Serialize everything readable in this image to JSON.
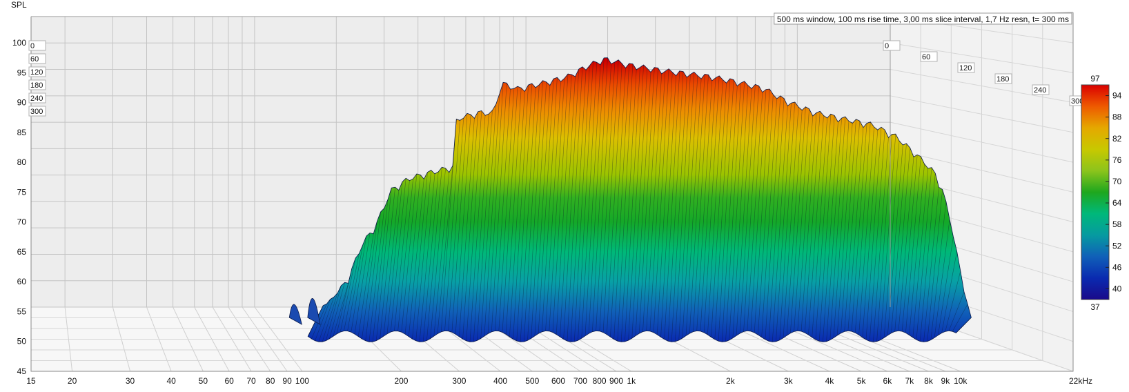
{
  "chart_data": {
    "type": "area",
    "subtype": "waterfall-3d",
    "ylabel": "SPL",
    "info_text": "500 ms window, 100 ms rise time, 3,00 ms slice interval, 1,7 Hz resn, t= 300 ms",
    "x_scale": "log",
    "xlim": [
      15,
      22000
    ],
    "ylim": [
      45,
      100
    ],
    "x_ticks": [
      {
        "value": 15,
        "label": "15"
      },
      {
        "value": 20,
        "label": "20"
      },
      {
        "value": 30,
        "label": "30"
      },
      {
        "value": 40,
        "label": "40"
      },
      {
        "value": 50,
        "label": "50"
      },
      {
        "value": 60,
        "label": "60"
      },
      {
        "value": 70,
        "label": "70"
      },
      {
        "value": 80,
        "label": "80"
      },
      {
        "value": 90,
        "label": "90"
      },
      {
        "value": 100,
        "label": "100"
      },
      {
        "value": 200,
        "label": "200"
      },
      {
        "value": 300,
        "label": "300"
      },
      {
        "value": 400,
        "label": "400"
      },
      {
        "value": 500,
        "label": "500"
      },
      {
        "value": 600,
        "label": "600"
      },
      {
        "value": 700,
        "label": "700"
      },
      {
        "value": 800,
        "label": "800"
      },
      {
        "value": 900,
        "label": "900"
      },
      {
        "value": 1000,
        "label": "1k"
      },
      {
        "value": 2000,
        "label": "2k"
      },
      {
        "value": 3000,
        "label": "3k"
      },
      {
        "value": 4000,
        "label": "4k"
      },
      {
        "value": 5000,
        "label": "5k"
      },
      {
        "value": 6000,
        "label": "6k"
      },
      {
        "value": 7000,
        "label": "7k"
      },
      {
        "value": 8000,
        "label": "8k"
      },
      {
        "value": 9000,
        "label": "9k"
      },
      {
        "value": 10000,
        "label": "10k"
      },
      {
        "value": 22000,
        "label": "22kHz"
      }
    ],
    "y_ticks": [
      {
        "value": 45,
        "label": "45"
      },
      {
        "value": 50,
        "label": "50"
      },
      {
        "value": 55,
        "label": "55"
      },
      {
        "value": 60,
        "label": "60"
      },
      {
        "value": 65,
        "label": "65"
      },
      {
        "value": 70,
        "label": "70"
      },
      {
        "value": 75,
        "label": "75"
      },
      {
        "value": 80,
        "label": "80"
      },
      {
        "value": 85,
        "label": "85"
      },
      {
        "value": 90,
        "label": "90"
      },
      {
        "value": 95,
        "label": "95"
      },
      {
        "value": 100,
        "label": "100"
      }
    ],
    "time_ticks_left": [
      "0",
      "60",
      "120",
      "180",
      "240",
      "300"
    ],
    "time_ticks_right": [
      "0",
      "60",
      "120",
      "180",
      "240",
      "300"
    ],
    "colorbar": {
      "min_label": "37",
      "max_label": "97",
      "ticks": [
        "94",
        "88",
        "82",
        "76",
        "70",
        "64",
        "58",
        "52",
        "46",
        "40"
      ],
      "colors": [
        "#da0000",
        "#ee5a00",
        "#e5a800",
        "#c8c800",
        "#8cc41c",
        "#1ea71e",
        "#00b87a",
        "#069aa0",
        "#1060b8",
        "#0a2ab0",
        "#1a0a8a"
      ]
    },
    "surface": {
      "first_slice_spl_by_freq": [
        [
          120,
          56
        ],
        [
          130,
          58
        ],
        [
          140,
          60
        ],
        [
          155,
          66
        ],
        [
          170,
          69
        ],
        [
          190,
          75
        ],
        [
          215,
          77
        ],
        [
          250,
          78
        ],
        [
          295,
          79
        ],
        [
          300,
          87
        ],
        [
          350,
          88
        ],
        [
          390,
          88
        ],
        [
          410,
          93
        ],
        [
          460,
          92
        ],
        [
          550,
          93
        ],
        [
          650,
          94
        ],
        [
          760,
          96
        ],
        [
          850,
          97
        ],
        [
          1000,
          96
        ],
        [
          1300,
          95
        ],
        [
          1800,
          94
        ],
        [
          2200,
          93
        ],
        [
          2600,
          92
        ],
        [
          3000,
          90
        ],
        [
          3700,
          88
        ],
        [
          4500,
          87
        ],
        [
          5500,
          86
        ],
        [
          6500,
          84
        ],
        [
          7500,
          81
        ],
        [
          8500,
          78
        ],
        [
          9000,
          75
        ],
        [
          9500,
          70
        ],
        [
          10000,
          64
        ],
        [
          10500,
          58
        ],
        [
          11000,
          54
        ]
      ],
      "freq_range": [
        118,
        11000
      ],
      "floor_spl": 52
    }
  }
}
